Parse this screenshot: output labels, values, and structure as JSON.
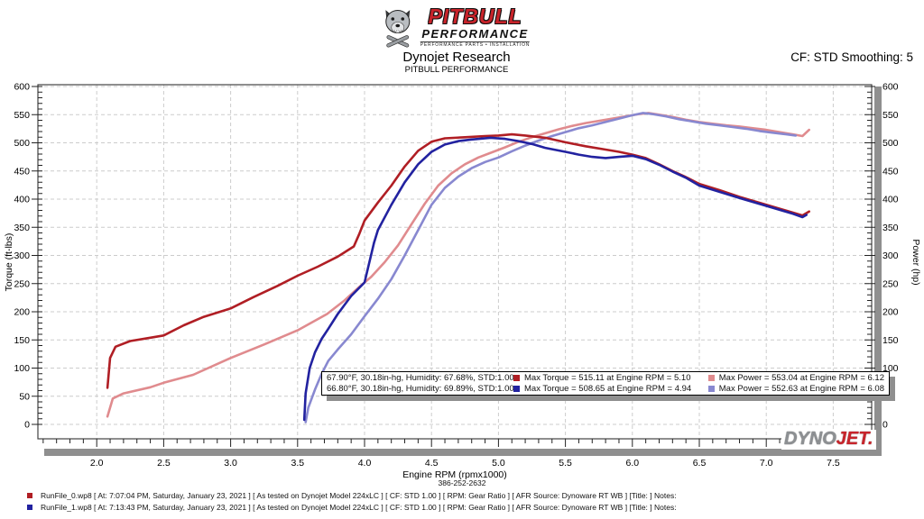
{
  "header": {
    "brand_top": "PITBULL",
    "brand_bottom": "PERFORMANCE",
    "brand_tagline": "PERFORMANCE PARTS • INSTALLATION",
    "title": "Dynojet Research",
    "subtitle": "PITBULL PERFORMANCE",
    "cf_label": "CF: STD Smoothing: 5"
  },
  "chart_data": {
    "type": "line",
    "xlabel": "Engine RPM (rpmx1000)",
    "ylabel_left": "Torque (ft-lbs)",
    "ylabel_right": "Power (hp)",
    "xlim": [
      1.56,
      7.79
    ],
    "ylim": [
      0,
      600
    ],
    "x_major_step": 0.5,
    "x_minor_step": 0.1,
    "y_major_step": 50,
    "y_minor_step": 10,
    "x_tick_labels": [
      "2.0",
      "2.5",
      "3.0",
      "3.5",
      "4.0",
      "4.5",
      "5.0",
      "5.5",
      "6.0",
      "6.5",
      "7.0",
      "7.5"
    ],
    "grid": "dashed",
    "colors": {
      "torque_run0": "#b01e24",
      "power_run0": "#e08b8e",
      "torque_run1": "#2222a0",
      "power_run1": "#8888d0",
      "shadow": "#8f8f8f",
      "gridline": "#cccccc"
    },
    "series": [
      {
        "name": "Power Run 0",
        "color": "#e08b8e",
        "points": [
          [
            2.08,
            14
          ],
          [
            2.12,
            46
          ],
          [
            2.2,
            55
          ],
          [
            2.4,
            66
          ],
          [
            2.5,
            74
          ],
          [
            2.72,
            88
          ],
          [
            3.0,
            118
          ],
          [
            3.25,
            142
          ],
          [
            3.5,
            167
          ],
          [
            3.72,
            196
          ],
          [
            3.85,
            220
          ],
          [
            3.95,
            242
          ],
          [
            4.05,
            262
          ],
          [
            4.15,
            288
          ],
          [
            4.25,
            318
          ],
          [
            4.35,
            355
          ],
          [
            4.45,
            392
          ],
          [
            4.55,
            424
          ],
          [
            4.65,
            446
          ],
          [
            4.75,
            462
          ],
          [
            4.85,
            474
          ],
          [
            4.95,
            483
          ],
          [
            5.05,
            492
          ],
          [
            5.15,
            502
          ],
          [
            5.25,
            510
          ],
          [
            5.35,
            517
          ],
          [
            5.45,
            524
          ],
          [
            5.55,
            530
          ],
          [
            5.65,
            535
          ],
          [
            5.75,
            539
          ],
          [
            5.85,
            543
          ],
          [
            5.95,
            547
          ],
          [
            6.05,
            551
          ],
          [
            6.12,
            553
          ],
          [
            6.2,
            550
          ],
          [
            6.3,
            546
          ],
          [
            6.4,
            541
          ],
          [
            6.5,
            537
          ],
          [
            6.6,
            534
          ],
          [
            6.7,
            531
          ],
          [
            6.8,
            529
          ],
          [
            6.9,
            526
          ],
          [
            7.0,
            523
          ],
          [
            7.1,
            519
          ],
          [
            7.2,
            515
          ],
          [
            7.27,
            512
          ],
          [
            7.32,
            523
          ]
        ]
      },
      {
        "name": "Power Run 1",
        "color": "#8888d0",
        "points": [
          [
            3.56,
            4
          ],
          [
            3.58,
            30
          ],
          [
            3.63,
            62
          ],
          [
            3.68,
            90
          ],
          [
            3.73,
            113
          ],
          [
            3.8,
            133
          ],
          [
            3.9,
            160
          ],
          [
            4.0,
            192
          ],
          [
            4.1,
            223
          ],
          [
            4.2,
            258
          ],
          [
            4.3,
            300
          ],
          [
            4.4,
            345
          ],
          [
            4.5,
            390
          ],
          [
            4.6,
            420
          ],
          [
            4.7,
            440
          ],
          [
            4.8,
            455
          ],
          [
            4.9,
            466
          ],
          [
            5.0,
            474
          ],
          [
            5.1,
            485
          ],
          [
            5.2,
            495
          ],
          [
            5.3,
            504
          ],
          [
            5.4,
            512
          ],
          [
            5.5,
            519
          ],
          [
            5.6,
            526
          ],
          [
            5.7,
            531
          ],
          [
            5.8,
            537
          ],
          [
            5.9,
            543
          ],
          [
            6.0,
            549
          ],
          [
            6.08,
            553
          ],
          [
            6.15,
            551
          ],
          [
            6.25,
            547
          ],
          [
            6.35,
            542
          ],
          [
            6.45,
            538
          ],
          [
            6.55,
            534
          ],
          [
            6.65,
            531
          ],
          [
            6.75,
            528
          ],
          [
            6.85,
            525
          ],
          [
            6.95,
            521
          ],
          [
            7.05,
            518
          ],
          [
            7.15,
            515
          ],
          [
            7.22,
            513
          ]
        ]
      },
      {
        "name": "Torque Run 0",
        "color": "#b01e24",
        "points": [
          [
            2.08,
            65
          ],
          [
            2.1,
            118
          ],
          [
            2.14,
            138
          ],
          [
            2.25,
            148
          ],
          [
            2.4,
            154
          ],
          [
            2.5,
            158
          ],
          [
            2.65,
            176
          ],
          [
            2.8,
            191
          ],
          [
            3.0,
            206
          ],
          [
            3.17,
            226
          ],
          [
            3.35,
            246
          ],
          [
            3.5,
            264
          ],
          [
            3.65,
            280
          ],
          [
            3.8,
            298
          ],
          [
            3.92,
            316
          ],
          [
            3.96,
            338
          ],
          [
            4.0,
            362
          ],
          [
            4.1,
            394
          ],
          [
            4.2,
            424
          ],
          [
            4.3,
            458
          ],
          [
            4.4,
            486
          ],
          [
            4.5,
            502
          ],
          [
            4.6,
            508
          ],
          [
            4.75,
            510
          ],
          [
            4.9,
            512
          ],
          [
            5.0,
            513
          ],
          [
            5.1,
            515
          ],
          [
            5.2,
            513
          ],
          [
            5.35,
            509
          ],
          [
            5.5,
            501
          ],
          [
            5.65,
            494
          ],
          [
            5.8,
            488
          ],
          [
            5.9,
            484
          ],
          [
            6.0,
            479
          ],
          [
            6.1,
            473
          ],
          [
            6.2,
            462
          ],
          [
            6.3,
            450
          ],
          [
            6.4,
            439
          ],
          [
            6.5,
            427
          ],
          [
            6.65,
            416
          ],
          [
            6.8,
            404
          ],
          [
            7.0,
            390
          ],
          [
            7.1,
            383
          ],
          [
            7.2,
            376
          ],
          [
            7.27,
            371
          ],
          [
            7.32,
            378
          ]
        ]
      },
      {
        "name": "Torque Run 1",
        "color": "#2222a0",
        "points": [
          [
            3.55,
            8
          ],
          [
            3.56,
            55
          ],
          [
            3.59,
            100
          ],
          [
            3.63,
            128
          ],
          [
            3.68,
            152
          ],
          [
            3.73,
            170
          ],
          [
            3.8,
            196
          ],
          [
            3.9,
            228
          ],
          [
            4.0,
            252
          ],
          [
            4.07,
            322
          ],
          [
            4.1,
            345
          ],
          [
            4.2,
            390
          ],
          [
            4.3,
            430
          ],
          [
            4.4,
            462
          ],
          [
            4.5,
            484
          ],
          [
            4.6,
            497
          ],
          [
            4.7,
            503
          ],
          [
            4.8,
            506
          ],
          [
            4.94,
            509
          ],
          [
            5.05,
            507
          ],
          [
            5.15,
            503
          ],
          [
            5.25,
            498
          ],
          [
            5.35,
            491
          ],
          [
            5.5,
            484
          ],
          [
            5.6,
            479
          ],
          [
            5.7,
            475
          ],
          [
            5.8,
            473
          ],
          [
            5.9,
            475
          ],
          [
            6.0,
            477
          ],
          [
            6.1,
            471
          ],
          [
            6.2,
            461
          ],
          [
            6.3,
            449
          ],
          [
            6.4,
            438
          ],
          [
            6.5,
            424
          ],
          [
            6.65,
            413
          ],
          [
            6.8,
            402
          ],
          [
            7.0,
            388
          ],
          [
            7.1,
            381
          ],
          [
            7.2,
            374
          ],
          [
            7.27,
            368
          ],
          [
            7.3,
            372
          ]
        ]
      }
    ],
    "legend": {
      "rows": [
        {
          "env": "67.90°F, 30.18in-hg, Humidity: 67.68%, STD:1.00",
          "torque_color": "#b01e24",
          "torque": "Max Torque = 515.11 at Engine RPM = 5.10",
          "power_color": "#e08b8e",
          "power": "Max Power = 553.04 at Engine RPM = 6.12"
        },
        {
          "env": "66.80°F, 30.18in-hg, Humidity: 69.89%, STD:1.00",
          "torque_color": "#2222a0",
          "torque": "Max Torque = 508.65 at Engine RPM = 4.94",
          "power_color": "#8888d0",
          "power": "Max Power = 552.63 at Engine RPM = 6.08"
        }
      ]
    }
  },
  "watermark": {
    "dyno": "DYNO",
    "jet": "JET."
  },
  "footer": {
    "phone": "386-252-2632",
    "runs": [
      {
        "color": "#b01e24",
        "text": "RunFile_0.wp8 [ At: 7:07:04 PM, Saturday, January 23, 2021 ] [ As tested on Dynojet Model 224xLC ] [ CF: STD 1.00 ] [ RPM: Gear Ratio ] [ AFR Source: Dynoware RT WB ] [Title:  ]   Notes:"
      },
      {
        "color": "#2222a0",
        "text": "RunFile_1.wp8 [ At: 7:13:43 PM, Saturday, January 23, 2021 ] [ As tested on Dynojet Model 224xLC ] [ CF: STD 1.00 ] [ RPM: Gear Ratio ] [ AFR Source: Dynoware RT WB ] [Title:  ]   Notes:"
      }
    ]
  }
}
